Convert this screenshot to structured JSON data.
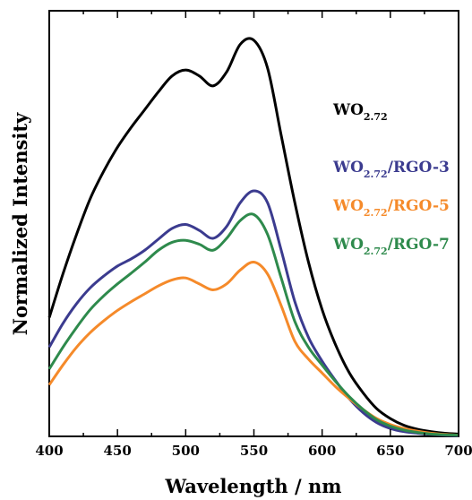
{
  "chart_data": {
    "type": "line",
    "xlabel": "Wavelength / nm",
    "ylabel": "Normalized Intensity",
    "xlim": [
      400,
      700
    ],
    "ylim": [
      0,
      1.0
    ],
    "x_ticks": [
      "400",
      "450",
      "500",
      "550",
      "600",
      "650",
      "700"
    ],
    "y_ticks_visible": false,
    "grid": false,
    "legend_position": "right, inside plot",
    "series": [
      {
        "name_main": "WO",
        "name_sub": "2.72",
        "name_suffix": "",
        "color": "#000000",
        "x": [
          400,
          410,
          420,
          430,
          440,
          450,
          460,
          470,
          480,
          490,
          500,
          510,
          520,
          530,
          540,
          550,
          560,
          570,
          580,
          590,
          600,
          610,
          620,
          630,
          640,
          650,
          660,
          670,
          680,
          690,
          700
        ],
        "y": [
          0.3,
          0.41,
          0.51,
          0.6,
          0.67,
          0.73,
          0.78,
          0.825,
          0.87,
          0.91,
          0.925,
          0.91,
          0.885,
          0.92,
          0.99,
          1.0,
          0.93,
          0.76,
          0.59,
          0.44,
          0.32,
          0.23,
          0.16,
          0.11,
          0.07,
          0.045,
          0.028,
          0.018,
          0.012,
          0.008,
          0.006
        ]
      },
      {
        "name_main": "WO",
        "name_sub": "2.72",
        "name_suffix": "/RGO-3",
        "color": "#3b3b8f",
        "x": [
          400,
          410,
          420,
          430,
          440,
          450,
          460,
          470,
          480,
          490,
          500,
          510,
          520,
          530,
          540,
          550,
          560,
          570,
          580,
          590,
          600,
          610,
          620,
          630,
          640,
          650,
          660,
          670,
          680,
          690,
          700
        ],
        "y": [
          0.225,
          0.285,
          0.335,
          0.375,
          0.405,
          0.43,
          0.448,
          0.47,
          0.498,
          0.525,
          0.535,
          0.52,
          0.5,
          0.53,
          0.59,
          0.62,
          0.59,
          0.47,
          0.34,
          0.25,
          0.19,
          0.14,
          0.095,
          0.06,
          0.035,
          0.02,
          0.012,
          0.008,
          0.005,
          0.003,
          0.002
        ]
      },
      {
        "name_main": "WO",
        "name_sub": "2.72",
        "name_suffix": "/RGO-5",
        "color": "#f58a2a",
        "x": [
          400,
          410,
          420,
          430,
          440,
          450,
          460,
          470,
          480,
          490,
          500,
          510,
          520,
          530,
          540,
          550,
          560,
          570,
          580,
          590,
          600,
          610,
          620,
          630,
          640,
          650,
          660,
          670,
          680,
          690,
          700
        ],
        "y": [
          0.13,
          0.18,
          0.225,
          0.262,
          0.292,
          0.318,
          0.34,
          0.36,
          0.38,
          0.395,
          0.4,
          0.385,
          0.37,
          0.385,
          0.42,
          0.44,
          0.41,
          0.33,
          0.24,
          0.195,
          0.16,
          0.125,
          0.095,
          0.068,
          0.045,
          0.03,
          0.02,
          0.013,
          0.008,
          0.005,
          0.003
        ]
      },
      {
        "name_main": "WO",
        "name_sub": "2.72",
        "name_suffix": "/RGO-7",
        "color": "#2e8a4c",
        "x": [
          400,
          410,
          420,
          430,
          440,
          450,
          460,
          470,
          480,
          490,
          500,
          510,
          520,
          530,
          540,
          550,
          560,
          570,
          580,
          590,
          600,
          610,
          620,
          630,
          640,
          650,
          660,
          670,
          680,
          690,
          700
        ],
        "y": [
          0.17,
          0.225,
          0.275,
          0.32,
          0.355,
          0.385,
          0.412,
          0.44,
          0.47,
          0.49,
          0.495,
          0.485,
          0.47,
          0.5,
          0.545,
          0.56,
          0.51,
          0.4,
          0.29,
          0.225,
          0.18,
          0.138,
          0.1,
          0.068,
          0.042,
          0.026,
          0.016,
          0.01,
          0.006,
          0.004,
          0.003
        ]
      }
    ]
  }
}
